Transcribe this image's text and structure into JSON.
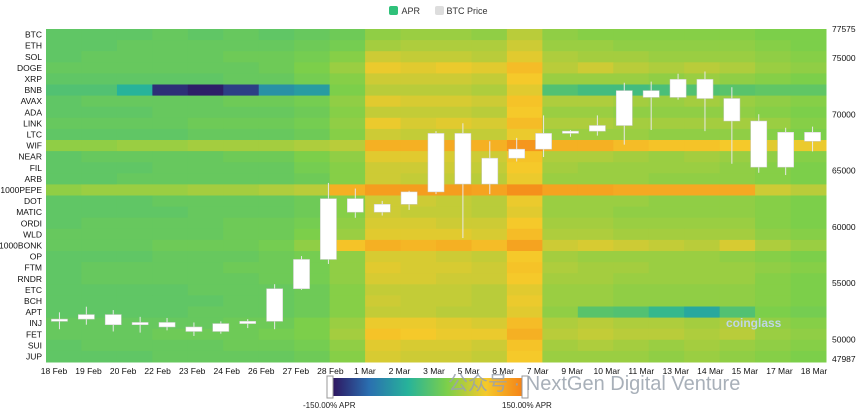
{
  "legend": {
    "apr_label": "APR",
    "price_label": "BTC Price",
    "apr_color": "#2fc17a",
    "price_color": "#dddddd"
  },
  "colorbar": {
    "min_label": "-150.00% APR",
    "max_label": "150.00% APR"
  },
  "watermark": "公众号 · NextGen Digital Venture",
  "logo": "coinglass",
  "chart_data": {
    "type": "heatmap",
    "title": "",
    "assets": [
      "BTC",
      "ETH",
      "SOL",
      "DOGE",
      "XRP",
      "BNB",
      "AVAX",
      "ADA",
      "LINK",
      "LTC",
      "WIF",
      "NEAR",
      "FIL",
      "ARB",
      "1000PEPE",
      "DOT",
      "MATIC",
      "ORDI",
      "WLD",
      "1000BONK",
      "OP",
      "FTM",
      "RNDR",
      "ETC",
      "BCH",
      "APT",
      "INJ",
      "FET",
      "SUI",
      "JUP"
    ],
    "x_ticks": [
      "18 Feb",
      "19 Feb",
      "20 Feb",
      "22 Feb",
      "23 Feb",
      "24 Feb",
      "26 Feb",
      "27 Feb",
      "28 Feb",
      "1 Mar",
      "2 Mar",
      "3 Mar",
      "5 Mar",
      "6 Mar",
      "7 Mar",
      "9 Mar",
      "10 Mar",
      "11 Mar",
      "13 Mar",
      "14 Mar",
      "15 Mar",
      "17 Mar",
      "18 Mar"
    ],
    "y2_ticks": [
      77575,
      75000,
      70000,
      65000,
      60000,
      55000,
      50000,
      47987
    ],
    "y2_range": [
      47987,
      77575
    ],
    "color_range": [
      -150,
      150
    ],
    "color_scale": [
      "#2e0f5a",
      "#2a6fb0",
      "#27b39a",
      "#7ccf4a",
      "#f5c92a",
      "#f57d16"
    ],
    "apr_by_asset_period": [
      {
        "asset": "BTC",
        "values": [
          10,
          10,
          10,
          15,
          10,
          15,
          10,
          15,
          20,
          40,
          45,
          45,
          40,
          60,
          40,
          35,
          35,
          35,
          35,
          35,
          30,
          30
        ]
      },
      {
        "asset": "ETH",
        "values": [
          10,
          10,
          15,
          15,
          15,
          15,
          15,
          20,
          25,
          50,
          55,
          55,
          55,
          70,
          45,
          45,
          40,
          40,
          40,
          40,
          35,
          30
        ]
      },
      {
        "asset": "SOL",
        "values": [
          10,
          15,
          15,
          15,
          15,
          20,
          20,
          25,
          35,
          70,
          65,
          65,
          60,
          80,
          55,
          50,
          50,
          45,
          45,
          45,
          40,
          35
        ]
      },
      {
        "asset": "DOGE",
        "values": [
          15,
          15,
          15,
          15,
          15,
          15,
          20,
          30,
          45,
          85,
          80,
          85,
          80,
          100,
          60,
          70,
          60,
          55,
          60,
          55,
          45,
          40
        ]
      },
      {
        "asset": "XRP",
        "values": [
          10,
          10,
          10,
          10,
          10,
          15,
          15,
          25,
          35,
          70,
          70,
          70,
          65,
          90,
          45,
          45,
          45,
          40,
          45,
          40,
          35,
          30
        ]
      },
      {
        "asset": "BNB",
        "values": [
          0,
          0,
          -30,
          -130,
          -140,
          -120,
          -60,
          -50,
          30,
          60,
          60,
          60,
          55,
          80,
          0,
          -10,
          -10,
          -5,
          0,
          5,
          10,
          10
        ]
      },
      {
        "asset": "AVAX",
        "values": [
          10,
          15,
          15,
          15,
          15,
          20,
          20,
          25,
          40,
          80,
          75,
          75,
          70,
          95,
          55,
          55,
          50,
          45,
          50,
          45,
          40,
          35
        ]
      },
      {
        "asset": "ADA",
        "values": [
          10,
          10,
          10,
          15,
          15,
          15,
          15,
          20,
          35,
          65,
          65,
          65,
          60,
          90,
          45,
          45,
          40,
          40,
          40,
          40,
          35,
          30
        ]
      },
      {
        "asset": "LINK",
        "values": [
          15,
          15,
          15,
          15,
          20,
          20,
          20,
          25,
          40,
          85,
          75,
          80,
          75,
          100,
          55,
          55,
          50,
          50,
          50,
          50,
          45,
          35
        ]
      },
      {
        "asset": "LTC",
        "values": [
          10,
          10,
          10,
          10,
          15,
          15,
          15,
          20,
          35,
          70,
          65,
          65,
          65,
          85,
          45,
          45,
          45,
          40,
          40,
          40,
          35,
          30
        ]
      },
      {
        "asset": "WIF",
        "values": [
          40,
          40,
          45,
          45,
          50,
          50,
          50,
          55,
          60,
          110,
          110,
          115,
          110,
          130,
          110,
          110,
          100,
          95,
          95,
          90,
          80,
          85
        ]
      },
      {
        "asset": "NEAR",
        "values": [
          10,
          15,
          15,
          15,
          15,
          20,
          20,
          30,
          40,
          80,
          80,
          75,
          70,
          95,
          55,
          55,
          50,
          45,
          50,
          45,
          40,
          35
        ]
      },
      {
        "asset": "FIL",
        "values": [
          10,
          10,
          10,
          15,
          15,
          15,
          15,
          25,
          35,
          70,
          70,
          70,
          65,
          90,
          50,
          45,
          45,
          45,
          45,
          40,
          35,
          30
        ]
      },
      {
        "asset": "ARB",
        "values": [
          10,
          10,
          15,
          15,
          15,
          15,
          15,
          20,
          35,
          70,
          65,
          65,
          60,
          85,
          45,
          45,
          45,
          40,
          40,
          40,
          35,
          30
        ]
      },
      {
        "asset": "1000PEPE",
        "values": [
          40,
          45,
          45,
          45,
          50,
          50,
          55,
          60,
          110,
          125,
          125,
          125,
          120,
          135,
          120,
          120,
          115,
          115,
          115,
          115,
          70,
          60
        ]
      },
      {
        "asset": "DOT",
        "values": [
          10,
          10,
          10,
          15,
          15,
          15,
          15,
          20,
          35,
          70,
          70,
          65,
          60,
          85,
          45,
          45,
          45,
          40,
          40,
          40,
          35,
          30
        ]
      },
      {
        "asset": "MATIC",
        "values": [
          10,
          10,
          10,
          10,
          15,
          15,
          15,
          20,
          35,
          70,
          65,
          65,
          60,
          80,
          45,
          45,
          40,
          40,
          40,
          40,
          35,
          30
        ]
      },
      {
        "asset": "ORDI",
        "values": [
          10,
          15,
          15,
          15,
          15,
          20,
          20,
          25,
          40,
          75,
          75,
          70,
          70,
          90,
          50,
          50,
          45,
          45,
          45,
          45,
          35,
          30
        ]
      },
      {
        "asset": "WLD",
        "values": [
          15,
          15,
          15,
          15,
          15,
          20,
          20,
          30,
          45,
          80,
          80,
          80,
          75,
          100,
          55,
          55,
          50,
          50,
          50,
          50,
          40,
          35
        ]
      },
      {
        "asset": "1000BONK",
        "values": [
          15,
          15,
          15,
          20,
          20,
          20,
          25,
          40,
          95,
          110,
          105,
          110,
          100,
          120,
          70,
          75,
          70,
          65,
          60,
          75,
          55,
          45
        ]
      },
      {
        "asset": "OP",
        "values": [
          10,
          10,
          10,
          15,
          15,
          15,
          20,
          25,
          40,
          75,
          75,
          70,
          65,
          90,
          50,
          45,
          45,
          45,
          45,
          40,
          35,
          30
        ]
      },
      {
        "asset": "FTM",
        "values": [
          10,
          15,
          15,
          15,
          15,
          20,
          20,
          25,
          40,
          80,
          75,
          75,
          70,
          95,
          55,
          50,
          50,
          45,
          45,
          45,
          40,
          35
        ]
      },
      {
        "asset": "RNDR",
        "values": [
          10,
          15,
          15,
          15,
          15,
          15,
          20,
          25,
          40,
          75,
          75,
          70,
          70,
          90,
          50,
          50,
          45,
          45,
          45,
          45,
          35,
          30
        ]
      },
      {
        "asset": "ETC",
        "values": [
          10,
          10,
          10,
          10,
          15,
          15,
          15,
          20,
          35,
          65,
          65,
          65,
          60,
          80,
          45,
          45,
          40,
          40,
          40,
          40,
          35,
          30
        ]
      },
      {
        "asset": "BCH",
        "values": [
          10,
          10,
          10,
          10,
          10,
          15,
          15,
          20,
          35,
          70,
          65,
          65,
          60,
          85,
          45,
          45,
          40,
          40,
          40,
          40,
          35,
          30
        ]
      },
      {
        "asset": "APT",
        "values": [
          10,
          10,
          10,
          10,
          15,
          15,
          15,
          20,
          35,
          65,
          65,
          60,
          60,
          80,
          40,
          5,
          0,
          -20,
          -40,
          0,
          30,
          25
        ]
      },
      {
        "asset": "INJ",
        "values": [
          15,
          15,
          15,
          15,
          15,
          20,
          20,
          30,
          45,
          85,
          85,
          80,
          75,
          100,
          55,
          60,
          55,
          55,
          50,
          55,
          40,
          35
        ]
      },
      {
        "asset": "FET",
        "values": [
          15,
          15,
          15,
          20,
          20,
          20,
          25,
          30,
          50,
          95,
          90,
          85,
          85,
          110,
          60,
          65,
          60,
          60,
          55,
          60,
          45,
          40
        ]
      },
      {
        "asset": "SUI",
        "values": [
          10,
          15,
          15,
          15,
          15,
          20,
          20,
          25,
          40,
          80,
          75,
          75,
          70,
          95,
          50,
          55,
          50,
          45,
          50,
          45,
          40,
          35
        ]
      },
      {
        "asset": "JUP",
        "values": [
          10,
          10,
          10,
          15,
          15,
          15,
          15,
          20,
          35,
          75,
          70,
          70,
          65,
          90,
          45,
          45,
          45,
          40,
          45,
          40,
          35,
          30
        ]
      }
    ],
    "btc_price_daily": [
      {
        "date": "18 Feb",
        "open": 51600,
        "high": 52400,
        "low": 50900,
        "close": 51800
      },
      {
        "date": "19 Feb",
        "open": 51800,
        "high": 52900,
        "low": 51300,
        "close": 52200
      },
      {
        "date": "20 Feb",
        "open": 52200,
        "high": 52600,
        "low": 50700,
        "close": 51300
      },
      {
        "date": "21 Feb",
        "open": 51300,
        "high": 52000,
        "low": 50600,
        "close": 51500
      },
      {
        "date": "22 Feb",
        "open": 51500,
        "high": 51900,
        "low": 50800,
        "close": 51100
      },
      {
        "date": "23 Feb",
        "open": 51100,
        "high": 51500,
        "low": 50300,
        "close": 50700
      },
      {
        "date": "24 Feb",
        "open": 50700,
        "high": 51600,
        "low": 50500,
        "close": 51400
      },
      {
        "date": "25 Feb",
        "open": 51400,
        "high": 51800,
        "low": 51000,
        "close": 51600
      },
      {
        "date": "26 Feb",
        "open": 51600,
        "high": 54900,
        "low": 50900,
        "close": 54500
      },
      {
        "date": "27 Feb",
        "open": 54500,
        "high": 57400,
        "low": 54400,
        "close": 57100
      },
      {
        "date": "28 Feb",
        "open": 57100,
        "high": 63900,
        "low": 56700,
        "close": 62500
      },
      {
        "date": "1 Mar",
        "open": 62500,
        "high": 63400,
        "low": 60800,
        "close": 61300
      },
      {
        "date": "2 Mar",
        "open": 61300,
        "high": 62300,
        "low": 61000,
        "close": 62000
      },
      {
        "date": "3 Mar",
        "open": 62000,
        "high": 63200,
        "low": 61500,
        "close": 63100
      },
      {
        "date": "4 Mar",
        "open": 63100,
        "high": 68500,
        "low": 62900,
        "close": 68300
      },
      {
        "date": "5 Mar",
        "open": 68300,
        "high": 69200,
        "low": 59000,
        "close": 63800
      },
      {
        "date": "6 Mar",
        "open": 63800,
        "high": 67600,
        "low": 62900,
        "close": 66100
      },
      {
        "date": "7 Mar",
        "open": 66100,
        "high": 67900,
        "low": 65800,
        "close": 66900
      },
      {
        "date": "8 Mar",
        "open": 66900,
        "high": 69900,
        "low": 66200,
        "close": 68300
      },
      {
        "date": "9 Mar",
        "open": 68300,
        "high": 68600,
        "low": 68000,
        "close": 68500
      },
      {
        "date": "10 Mar",
        "open": 68500,
        "high": 69900,
        "low": 68100,
        "close": 69000
      },
      {
        "date": "11 Mar",
        "open": 69000,
        "high": 72800,
        "low": 67300,
        "close": 72100
      },
      {
        "date": "12 Mar",
        "open": 72100,
        "high": 72900,
        "low": 68600,
        "close": 71500
      },
      {
        "date": "13 Mar",
        "open": 71500,
        "high": 73600,
        "low": 71300,
        "close": 73100
      },
      {
        "date": "14 Mar",
        "open": 73100,
        "high": 73800,
        "low": 68500,
        "close": 71400
      },
      {
        "date": "15 Mar",
        "open": 71400,
        "high": 72400,
        "low": 65600,
        "close": 69400
      },
      {
        "date": "16 Mar",
        "open": 69400,
        "high": 70000,
        "low": 64800,
        "close": 65300
      },
      {
        "date": "17 Mar",
        "open": 65300,
        "high": 68800,
        "low": 64600,
        "close": 68400
      },
      {
        "date": "18 Mar",
        "open": 68400,
        "high": 68900,
        "low": 66700,
        "close": 67600
      }
    ]
  }
}
